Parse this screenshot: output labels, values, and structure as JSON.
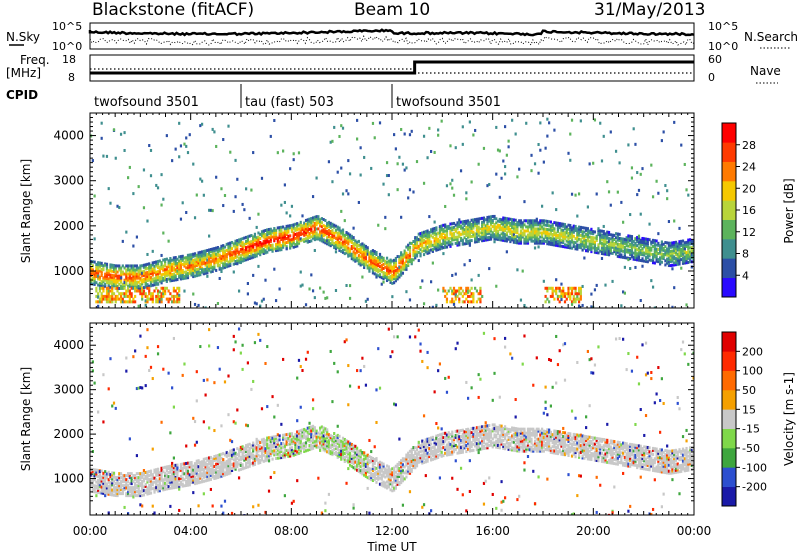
{
  "header": {
    "station": "Blackstone (fitACF)",
    "beam": "Beam 10",
    "date": "31/May/2013"
  },
  "strip": {
    "nsky_label": "N.Sky",
    "nsearch_label": "N.Search",
    "nsky_ticks": [
      "10^5",
      "10^0"
    ],
    "nsearch_ticks": [
      "10^5",
      "10^0"
    ],
    "freq_label_1": "Freq.",
    "freq_label_2": "[MHz]",
    "freq_ticks": [
      "18",
      "8"
    ],
    "nave_label": "Nave",
    "nave_ticks": [
      "60",
      "0"
    ],
    "cpid_label": "CPID"
  },
  "cpid_segments": [
    {
      "label": "twofsound 3501",
      "start_h": 0,
      "end_h": 6
    },
    {
      "label": "tau (fast) 503",
      "start_h": 6,
      "end_h": 12
    },
    {
      "label": "twofsound 3501",
      "start_h": 12,
      "end_h": 24
    }
  ],
  "power_panel": {
    "ylabel": "Slant Range [km]",
    "yticks": [
      "4000",
      "3000",
      "2000",
      "1000"
    ],
    "colorbar_label": "Power [dB]",
    "colorbar_ticks": [
      "28",
      "24",
      "20",
      "16",
      "12",
      "8",
      "4"
    ],
    "colors": [
      "#2a0aff",
      "#2c4fa6",
      "#3f8f8f",
      "#5cb35c",
      "#b8d43a",
      "#f5c800",
      "#ff7a00",
      "#ff3a00",
      "#ff0000"
    ]
  },
  "velocity_panel": {
    "ylabel": "Slant Range [km]",
    "yticks": [
      "4000",
      "3000",
      "2000",
      "1000"
    ],
    "colorbar_label": "Velocity [m s-1]",
    "colorbar_ticks": [
      "200",
      "100",
      "50",
      "15",
      "-15",
      "-50",
      "-100",
      "-200"
    ],
    "colors": [
      "#1a1aa8",
      "#2c4fd0",
      "#3ea63e",
      "#7fd84a",
      "#c8c8c8",
      "#f5a000",
      "#ff6a00",
      "#ff2a00",
      "#e00000"
    ]
  },
  "x_axis": {
    "label": "Time UT",
    "ticks": [
      "00:00",
      "04:00",
      "08:00",
      "12:00",
      "16:00",
      "20:00",
      "00:00"
    ]
  },
  "chart_data": [
    {
      "type": "heatmap",
      "title": "Blackstone (fitACF) Beam 10 31/May/2013",
      "quantity": "Power",
      "unit": "dB",
      "xlabel": "Time UT",
      "ylabel": "Slant Range [km]",
      "xlim_hours": [
        0,
        24
      ],
      "ylim": [
        180,
        4500
      ],
      "clim": [
        0,
        30
      ],
      "backscatter_band": {
        "time_h": [
          0,
          1,
          2,
          3,
          4,
          5,
          6,
          7,
          8,
          9,
          10,
          11,
          12,
          13,
          14,
          15,
          16,
          17,
          18,
          19,
          20,
          21,
          22,
          23,
          24
        ],
        "range_km": [
          1000,
          900,
          900,
          1050,
          1150,
          1300,
          1500,
          1700,
          1800,
          2000,
          1700,
          1300,
          1000,
          1600,
          1800,
          1900,
          2000,
          1900,
          1900,
          1800,
          1700,
          1600,
          1500,
          1400,
          1500
        ],
        "peak_power_db": [
          26,
          28,
          26,
          24,
          24,
          24,
          28,
          30,
          30,
          28,
          26,
          26,
          28,
          22,
          20,
          18,
          18,
          18,
          18,
          16,
          16,
          14,
          14,
          14,
          16
        ]
      }
    },
    {
      "type": "heatmap",
      "quantity": "Velocity",
      "unit": "m s-1",
      "xlabel": "Time UT",
      "ylabel": "Slant Range [km]",
      "xlim_hours": [
        0,
        24
      ],
      "ylim": [
        180,
        4500
      ],
      "clim": [
        -200,
        200
      ],
      "dominant_value": "ground scatter near 0 (grey, -15..15)"
    }
  ]
}
